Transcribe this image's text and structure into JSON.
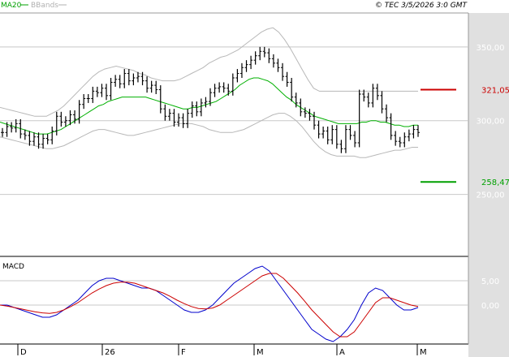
{
  "header": {
    "legend": [
      {
        "label": "MA20",
        "color": "#00a000"
      },
      {
        "label": "BBands",
        "color": "#b0b0b0"
      }
    ],
    "copyright": "© TEC 3/5/2026 3:0 GMT"
  },
  "colors": {
    "bar": "#000000",
    "ma20": "#00b000",
    "bbands": "#b8b8b8",
    "resistance": "#cc0000",
    "support": "#00a000",
    "macd": "#0000cc",
    "signal": "#cc0000",
    "axis_panel": "#e0e0e0",
    "grid": "#c8c8c8"
  },
  "chart_data": [
    {
      "type": "ohlc",
      "title": "",
      "y_ticks": [
        250,
        300,
        350
      ],
      "y_tick_labels": [
        "250,00",
        "300,00",
        "350,00"
      ],
      "ylim": [
        208,
        373
      ],
      "x_labels": [
        "D",
        "26",
        "F",
        "M",
        "A",
        "M"
      ],
      "levels": [
        {
          "name": "resistance",
          "value": 321.05,
          "label": "321,05"
        },
        {
          "name": "support",
          "value": 258.47,
          "label": "258,47"
        }
      ],
      "close": [
        292,
        296,
        295,
        298,
        291,
        290,
        286,
        289,
        284,
        288,
        287,
        293,
        303,
        299,
        300,
        304,
        301,
        311,
        315,
        315,
        320,
        319,
        322,
        317,
        326,
        328,
        325,
        332,
        327,
        329,
        330,
        327,
        322,
        324,
        321,
        308,
        303,
        305,
        299,
        302,
        298,
        305,
        310,
        306,
        312,
        313,
        319,
        322,
        323,
        322,
        320,
        329,
        332,
        336,
        338,
        341,
        344,
        347,
        346,
        342,
        339,
        336,
        330,
        326,
        316,
        312,
        306,
        305,
        303,
        297,
        291,
        293,
        287,
        294,
        284,
        281,
        294,
        290,
        285,
        318,
        316,
        312,
        322,
        317,
        308,
        302,
        290,
        286,
        285,
        289,
        291,
        294,
        292
      ],
      "ma20": [
        299,
        298,
        297,
        296,
        295,
        294,
        293,
        292,
        291,
        291,
        291,
        292,
        293,
        294,
        296,
        298,
        300,
        302,
        304,
        306,
        308,
        310,
        311,
        313,
        314,
        315,
        316,
        316,
        316,
        316,
        316,
        316,
        315,
        314,
        313,
        312,
        311,
        310,
        309,
        308,
        308,
        309,
        309,
        310,
        311,
        312,
        313,
        315,
        317,
        319,
        321,
        324,
        326,
        328,
        329,
        329,
        328,
        327,
        325,
        322,
        319,
        316,
        314,
        311,
        309,
        307,
        305,
        303,
        302,
        301,
        300,
        299,
        298,
        298,
        298,
        298,
        298,
        299,
        299,
        300,
        300,
        299,
        299,
        298,
        297,
        297,
        296,
        296,
        297,
        297
      ],
      "bb_upper": [
        309,
        308,
        307,
        306,
        305,
        304,
        303,
        303,
        303,
        305,
        307,
        310,
        314,
        318,
        322,
        326,
        330,
        333,
        335,
        336,
        337,
        336,
        335,
        334,
        332,
        331,
        329,
        328,
        327,
        327,
        327,
        328,
        330,
        332,
        334,
        336,
        339,
        341,
        343,
        344,
        346,
        348,
        351,
        354,
        357,
        360,
        362,
        363,
        360,
        355,
        349,
        342,
        335,
        328,
        322,
        320,
        320,
        320,
        320,
        320,
        320,
        320,
        320,
        320,
        320,
        320,
        320,
        320,
        320,
        320,
        320,
        320,
        320
      ],
      "bb_lower": [
        289,
        288,
        287,
        286,
        285,
        284,
        283,
        282,
        281,
        281,
        282,
        283,
        285,
        287,
        289,
        291,
        293,
        294,
        294,
        293,
        292,
        291,
        290,
        290,
        291,
        292,
        293,
        294,
        295,
        296,
        297,
        298,
        298,
        298,
        297,
        296,
        294,
        293,
        292,
        292,
        292,
        293,
        294,
        296,
        298,
        300,
        302,
        304,
        305,
        305,
        303,
        300,
        296,
        291,
        286,
        282,
        279,
        277,
        276,
        276,
        276,
        276,
        275,
        275,
        276,
        277,
        278,
        279,
        280,
        280,
        281,
        282,
        282
      ]
    },
    {
      "type": "line",
      "title": "MACD",
      "y_ticks": [
        0,
        5
      ],
      "y_tick_labels": [
        "0,00",
        "5,00"
      ],
      "ylim": [
        -8,
        10
      ],
      "series": [
        {
          "name": "MACD",
          "values": [
            0,
            0,
            -0.5,
            -1,
            -1.5,
            -2,
            -2.5,
            -2.5,
            -2,
            -1,
            0,
            1,
            2.5,
            4,
            5,
            5.5,
            5.5,
            5,
            4.5,
            4,
            3.5,
            3.5,
            3,
            2,
            1,
            0,
            -1,
            -1.5,
            -1.5,
            -1,
            0,
            1.5,
            3,
            4.5,
            5.5,
            6.5,
            7.5,
            8,
            7,
            5,
            3,
            1,
            -1,
            -3,
            -5,
            -6,
            -7,
            -7.5,
            -6.5,
            -5,
            -3,
            0,
            2.5,
            3.5,
            3,
            1.5,
            0,
            -1,
            -1,
            -0.5
          ]
        },
        {
          "name": "Signal",
          "values": [
            0,
            -0.2,
            -0.5,
            -0.8,
            -1.1,
            -1.4,
            -1.6,
            -1.7,
            -1.5,
            -1,
            -0.3,
            0.5,
            1.5,
            2.5,
            3.3,
            4,
            4.5,
            4.7,
            4.7,
            4.5,
            4,
            3.5,
            3,
            2.5,
            1.8,
            1,
            0.3,
            -0.3,
            -0.7,
            -0.8,
            -0.6,
            0,
            1,
            2,
            3,
            4,
            5,
            6,
            6.5,
            6.5,
            5.5,
            4,
            2.5,
            0.8,
            -1,
            -2.5,
            -4,
            -5.5,
            -6.5,
            -6.5,
            -5.5,
            -3.5,
            -1.5,
            0.5,
            1.5,
            1.5,
            1,
            0.5,
            0,
            -0.3
          ]
        }
      ]
    }
  ]
}
